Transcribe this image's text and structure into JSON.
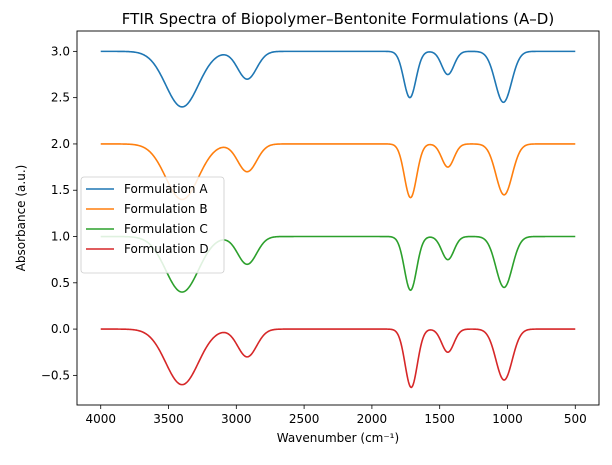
{
  "chart_data": {
    "type": "line",
    "title": "FTIR Spectra of Biopolymer–Bentonite Formulations (A–D)",
    "xlabel": "Wavenumber (cm⁻¹)",
    "ylabel": "Absorbance (a.u.)",
    "xlim": [
      4175,
      325
    ],
    "ylim": [
      -0.82,
      3.22
    ],
    "x_reversed": true,
    "x_ticks": [
      4000,
      3500,
      3000,
      2500,
      2000,
      1500,
      1000,
      500
    ],
    "y_ticks": [
      -0.5,
      0.0,
      0.5,
      1.0,
      1.5,
      2.0,
      2.5,
      3.0
    ],
    "x_tick_labels": [
      "4000",
      "3500",
      "3000",
      "2500",
      "2000",
      "1500",
      "1000",
      "500"
    ],
    "y_tick_labels": [
      "−0.5",
      "0.0",
      "0.5",
      "1.0",
      "1.5",
      "2.0",
      "2.5",
      "3.0"
    ],
    "grid": false,
    "legend_position": "center-left",
    "x_range": [
      4000,
      500
    ],
    "series": [
      {
        "name": "Formulation A",
        "color": "#1f77b4",
        "baseline": 3.0,
        "peaks": [
          {
            "center": 3400,
            "depth": 0.6,
            "width": 120
          },
          {
            "center": 2920,
            "depth": 0.3,
            "width": 70
          },
          {
            "center": 1720,
            "depth": 0.5,
            "width": 45
          },
          {
            "center": 1440,
            "depth": 0.25,
            "width": 45
          },
          {
            "center": 1030,
            "depth": 0.55,
            "width": 60
          }
        ]
      },
      {
        "name": "Formulation B",
        "color": "#ff7f0e",
        "baseline": 2.0,
        "peaks": [
          {
            "center": 3400,
            "depth": 0.6,
            "width": 120
          },
          {
            "center": 2920,
            "depth": 0.3,
            "width": 70
          },
          {
            "center": 1715,
            "depth": 0.58,
            "width": 45
          },
          {
            "center": 1440,
            "depth": 0.25,
            "width": 45
          },
          {
            "center": 1025,
            "depth": 0.55,
            "width": 60
          }
        ]
      },
      {
        "name": "Formulation C",
        "color": "#2ca02c",
        "baseline": 1.0,
        "peaks": [
          {
            "center": 3400,
            "depth": 0.6,
            "width": 120
          },
          {
            "center": 2920,
            "depth": 0.3,
            "width": 70
          },
          {
            "center": 1715,
            "depth": 0.58,
            "width": 45
          },
          {
            "center": 1440,
            "depth": 0.25,
            "width": 45
          },
          {
            "center": 1025,
            "depth": 0.55,
            "width": 60
          }
        ]
      },
      {
        "name": "Formulation D",
        "color": "#d62728",
        "baseline": 0.0,
        "peaks": [
          {
            "center": 3400,
            "depth": 0.6,
            "width": 120
          },
          {
            "center": 2920,
            "depth": 0.3,
            "width": 70
          },
          {
            "center": 1710,
            "depth": 0.63,
            "width": 45
          },
          {
            "center": 1440,
            "depth": 0.25,
            "width": 45
          },
          {
            "center": 1025,
            "depth": 0.55,
            "width": 60
          }
        ]
      }
    ]
  }
}
